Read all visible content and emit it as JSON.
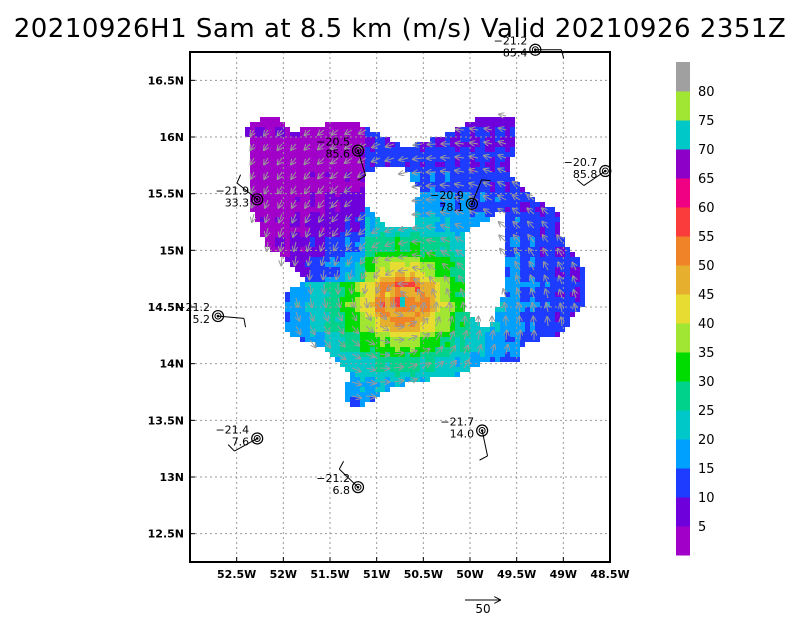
{
  "chart_data": {
    "type": "heatmap",
    "title": "20210926H1 Sam at 8.5 km (m/s) Valid 20210926  2351Z",
    "x_axis": {
      "range": [
        -53.0,
        -48.5
      ],
      "ticks": [
        -52.5,
        -52,
        -51.5,
        -51,
        -50.5,
        -50,
        -49.5,
        -49,
        -48.5
      ],
      "tick_labels": [
        "52.5W",
        "52W",
        "51.5W",
        "51W",
        "50.5W",
        "50W",
        "49.5W",
        "49W",
        "48.5W"
      ]
    },
    "y_axis": {
      "range": [
        12.25,
        16.75
      ],
      "ticks": [
        12.5,
        13,
        13.5,
        14,
        14.5,
        15,
        15.5,
        16,
        16.5
      ],
      "tick_labels": [
        "12.5N",
        "13N",
        "13.5N",
        "14N",
        "14.5N",
        "15N",
        "15.5N",
        "16N",
        "16.5N"
      ]
    },
    "grid": true,
    "colorbar": {
      "placement": "right",
      "levels": [
        5,
        10,
        15,
        20,
        25,
        30,
        35,
        40,
        45,
        50,
        55,
        60,
        65,
        70,
        75,
        80
      ],
      "colors": [
        "#a000c8",
        "#6e00dc",
        "#1e3cff",
        "#00a0ff",
        "#00c8c8",
        "#00d28c",
        "#00dc00",
        "#a0e632",
        "#e6dc32",
        "#e6af2d",
        "#f08228",
        "#fa3c3c",
        "#f00082",
        "#8c00c8",
        "#00c8c8",
        "#a0e632",
        "#a0a0a0"
      ]
    },
    "storm_center": {
      "lon": -50.72,
      "lat": 14.55
    },
    "dropsondes": [
      {
        "lon": -49.3,
        "lat": 16.77,
        "temp": "−21.2",
        "value": "85.4"
      },
      {
        "lon": -51.2,
        "lat": 15.88,
        "temp": "−20.5",
        "value": "85.6"
      },
      {
        "lon": -48.55,
        "lat": 15.7,
        "temp": "−20.7",
        "value": "85.8"
      },
      {
        "lon": -52.28,
        "lat": 15.45,
        "temp": "−21.9",
        "value": "33.3"
      },
      {
        "lon": -49.98,
        "lat": 15.41,
        "temp": "−20.9",
        "value": "78.1"
      },
      {
        "lon": -52.7,
        "lat": 14.42,
        "temp": "−21.2",
        "value": "5.2"
      },
      {
        "lon": -49.87,
        "lat": 13.41,
        "temp": "−21.7",
        "value": "14.0"
      },
      {
        "lon": -52.28,
        "lat": 13.34,
        "temp": "−21.4",
        "value": "7.6"
      },
      {
        "lon": -51.2,
        "lat": 12.91,
        "temp": "−21.2",
        "value": "6.8"
      }
    ],
    "reference_vector": {
      "label": "50"
    }
  }
}
